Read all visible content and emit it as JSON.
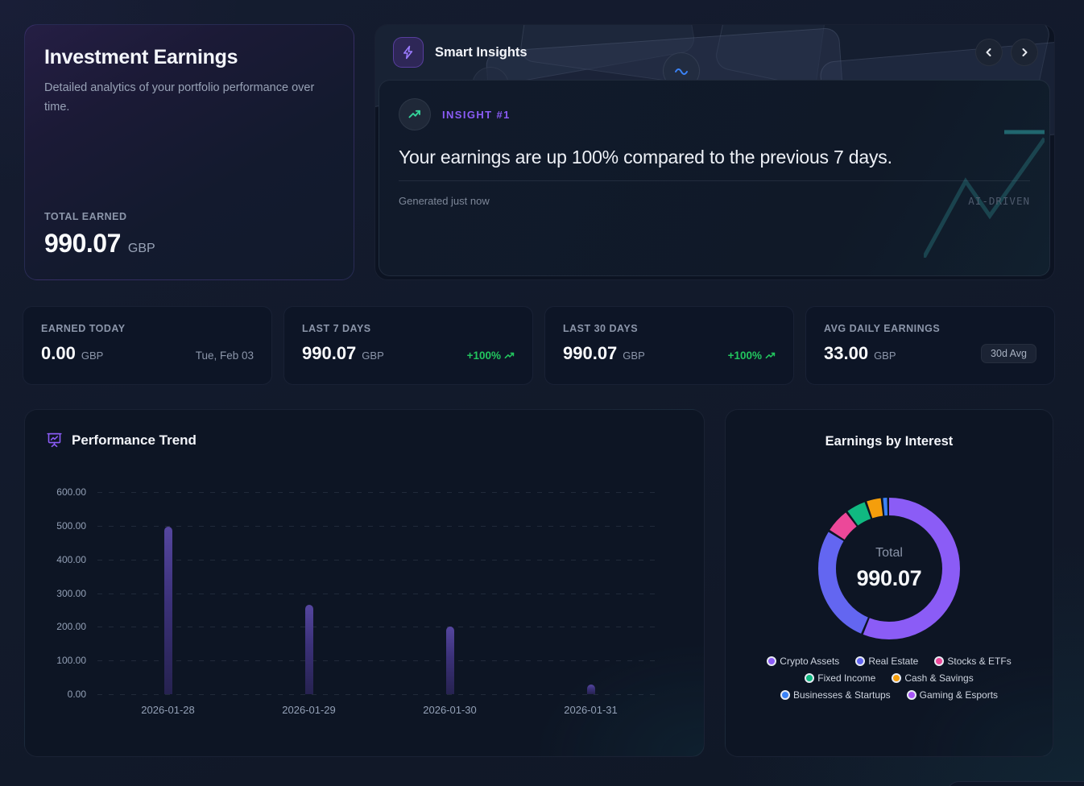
{
  "hero": {
    "title": "Investment Earnings",
    "subtitle": "Detailed analytics of your portfolio performance over time.",
    "total_label": "TOTAL EARNED",
    "total_value": "990.07",
    "currency": "GBP"
  },
  "insights": {
    "header": "Smart Insights",
    "badge_label": "INSIGHT #1",
    "headline": "Your earnings are up 100% compared to the previous 7 days.",
    "generated": "Generated just now",
    "ai_tag": "AI-DRIVEN"
  },
  "stats": [
    {
      "label": "EARNED TODAY",
      "value": "0.00",
      "currency": "GBP",
      "meta": {
        "style": "date",
        "text": "Tue, Feb 03"
      }
    },
    {
      "label": "LAST 7 DAYS",
      "value": "990.07",
      "currency": "GBP",
      "meta": {
        "style": "positive",
        "text": "+100%"
      }
    },
    {
      "label": "LAST 30 DAYS",
      "value": "990.07",
      "currency": "GBP",
      "meta": {
        "style": "positive",
        "text": "+100%"
      }
    },
    {
      "label": "AVG DAILY EARNINGS",
      "value": "33.00",
      "currency": "GBP",
      "meta": {
        "style": "badge",
        "text": "30d Avg"
      }
    }
  ],
  "chart_data": [
    {
      "type": "bar",
      "title": "Performance Trend",
      "categories": [
        "2026-01-28",
        "2026-01-29",
        "2026-01-30",
        "2026-01-31"
      ],
      "values": [
        497.07,
        265,
        200,
        28
      ],
      "xlabel": "",
      "ylabel": "",
      "ylim": [
        0,
        600
      ],
      "ytick_labels": [
        "600.00",
        "500.00",
        "400.00",
        "300.00",
        "200.00",
        "100.00",
        "0.00"
      ],
      "grid": "horizontal-dashed",
      "bar_color_top": "#54469E",
      "bar_color_bottom": "#272250"
    },
    {
      "type": "pie",
      "donut": true,
      "title": "Earnings by Interest",
      "center_label": "Total",
      "center_value": "990.07",
      "legend_position": "bottom",
      "segments": [
        {
          "label": "Crypto Assets",
          "value": 559.07,
          "color": "#8B5CF6"
        },
        {
          "label": "Real Estate",
          "value": 274,
          "color": "#6366F1"
        },
        {
          "label": "Stocks & ETFs",
          "value": 58,
          "color": "#EC4899"
        },
        {
          "label": "Fixed Income",
          "value": 48,
          "color": "#10B981"
        },
        {
          "label": "Cash & Savings",
          "value": 37,
          "color": "#F59E0B"
        },
        {
          "label": "Businesses & Startups",
          "value": 14,
          "color": "#3B82F6"
        },
        {
          "label": "Gaming & Esports",
          "value": 0,
          "color": "#A855F7"
        }
      ],
      "legend_rows": [
        [
          0,
          1,
          2
        ],
        [
          3,
          4
        ],
        [
          5,
          6
        ]
      ]
    }
  ],
  "colors": {
    "accent": "#8B5CF6",
    "positive": "#22C55E",
    "teal_decoration": "#2DD4BF"
  }
}
